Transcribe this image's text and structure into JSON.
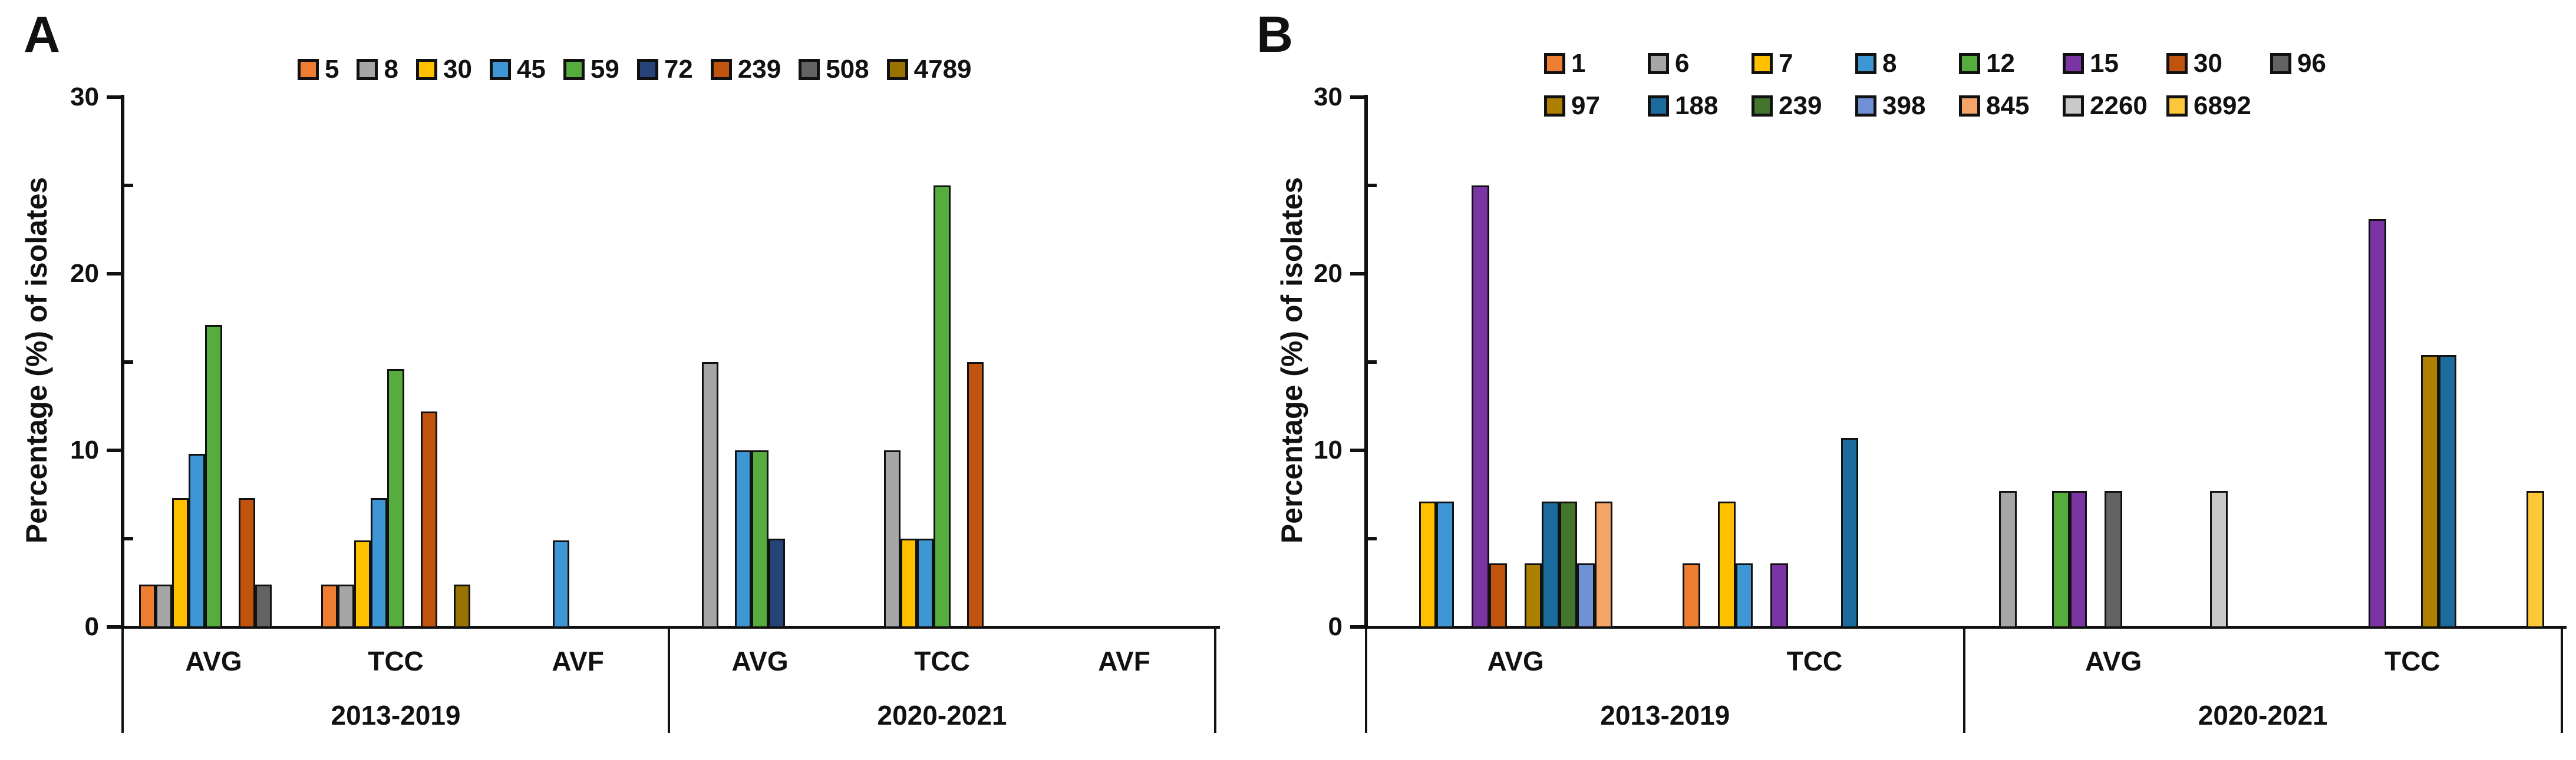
{
  "chart_data": [
    {
      "panel_label": "A",
      "type": "bar",
      "title": "",
      "xlabel": "",
      "ylabel": "Percentage (%) of isolates",
      "ylim": [
        0,
        30
      ],
      "yticks_major": [
        0,
        10,
        20,
        30
      ],
      "yticks_minor": [
        5,
        15,
        25
      ],
      "grid": false,
      "legend_position": "top",
      "groups": [
        "2013-2019",
        "2020-2021"
      ],
      "categories": [
        {
          "label": "AVG",
          "group": 0
        },
        {
          "label": "TCC",
          "group": 0
        },
        {
          "label": "AVF",
          "group": 0
        },
        {
          "label": "AVG",
          "group": 1
        },
        {
          "label": "TCC",
          "group": 1
        },
        {
          "label": "AVF",
          "group": 1
        }
      ],
      "series": [
        {
          "name": "5",
          "color": "#ED7D31",
          "values": [
            2.4,
            2.4,
            0,
            0,
            0,
            0
          ]
        },
        {
          "name": "8",
          "color": "#A6A6A6",
          "values": [
            2.4,
            2.4,
            0,
            15,
            10,
            0
          ]
        },
        {
          "name": "30",
          "color": "#FFC000",
          "values": [
            7.3,
            4.9,
            0,
            0,
            5,
            0
          ]
        },
        {
          "name": "45",
          "color": "#3E97D4",
          "values": [
            9.8,
            7.3,
            4.9,
            10,
            5,
            0
          ]
        },
        {
          "name": "59",
          "color": "#56AC3C",
          "values": [
            17.1,
            14.6,
            0,
            10,
            25,
            0
          ]
        },
        {
          "name": "72",
          "color": "#264478",
          "values": [
            0,
            0,
            0,
            5,
            0,
            0
          ]
        },
        {
          "name": "239",
          "color": "#C0540F",
          "values": [
            7.3,
            12.2,
            0,
            0,
            15,
            0
          ]
        },
        {
          "name": "508",
          "color": "#636363",
          "values": [
            2.4,
            0,
            0,
            0,
            0,
            0
          ]
        },
        {
          "name": "4789",
          "color": "#997300",
          "values": [
            0,
            2.4,
            0,
            0,
            0,
            0
          ]
        }
      ],
      "legend_rows": [
        [
          "5",
          "8",
          "30",
          "45",
          "59",
          "72",
          "239",
          "508",
          "4789"
        ]
      ]
    },
    {
      "panel_label": "B",
      "type": "bar",
      "title": "",
      "xlabel": "",
      "ylabel": "Percentage (%) of isolates",
      "ylim": [
        0,
        30
      ],
      "yticks_major": [
        0,
        10,
        20,
        30
      ],
      "yticks_minor": [
        5,
        15,
        25
      ],
      "grid": false,
      "legend_position": "top",
      "groups": [
        "2013-2019",
        "2020-2021"
      ],
      "categories": [
        {
          "label": "AVG",
          "group": 0
        },
        {
          "label": "TCC",
          "group": 0
        },
        {
          "label": "AVG",
          "group": 1
        },
        {
          "label": "TCC",
          "group": 1
        }
      ],
      "series": [
        {
          "name": "1",
          "color": "#ED7D31",
          "values": [
            0,
            3.6,
            0,
            0
          ]
        },
        {
          "name": "6",
          "color": "#A6A6A6",
          "values": [
            0,
            0,
            7.7,
            0
          ]
        },
        {
          "name": "7",
          "color": "#FFC000",
          "values": [
            7.1,
            7.1,
            0,
            0
          ]
        },
        {
          "name": "8",
          "color": "#3E97D4",
          "values": [
            7.1,
            3.6,
            0,
            0
          ]
        },
        {
          "name": "12",
          "color": "#56AC3C",
          "values": [
            0,
            0,
            7.7,
            0
          ]
        },
        {
          "name": "15",
          "color": "#7A34A4",
          "values": [
            25.0,
            3.6,
            7.7,
            23.1
          ]
        },
        {
          "name": "30",
          "color": "#C0540F",
          "values": [
            3.6,
            0,
            0,
            0
          ]
        },
        {
          "name": "96",
          "color": "#636363",
          "values": [
            0,
            0,
            7.7,
            0
          ]
        },
        {
          "name": "97",
          "color": "#AD8000",
          "values": [
            3.6,
            0,
            0,
            15.4
          ]
        },
        {
          "name": "188",
          "color": "#1B6C9C",
          "values": [
            7.1,
            10.7,
            0,
            15.4
          ]
        },
        {
          "name": "239",
          "color": "#44752D",
          "values": [
            7.1,
            0,
            0,
            0
          ]
        },
        {
          "name": "398",
          "color": "#7090D5",
          "values": [
            3.6,
            0,
            0,
            0
          ]
        },
        {
          "name": "845",
          "color": "#F4A467",
          "values": [
            7.1,
            0,
            0,
            0
          ]
        },
        {
          "name": "2260",
          "color": "#C9C9C9",
          "values": [
            0,
            0,
            7.7,
            0
          ]
        },
        {
          "name": "6892",
          "color": "#FCC839",
          "values": [
            0,
            0,
            0,
            7.7
          ]
        }
      ],
      "legend_rows": [
        [
          "1",
          "6",
          "7",
          "8",
          "12",
          "15",
          "30",
          "96"
        ],
        [
          "97",
          "188",
          "239",
          "398",
          "845",
          "2260",
          "6892"
        ]
      ]
    }
  ]
}
